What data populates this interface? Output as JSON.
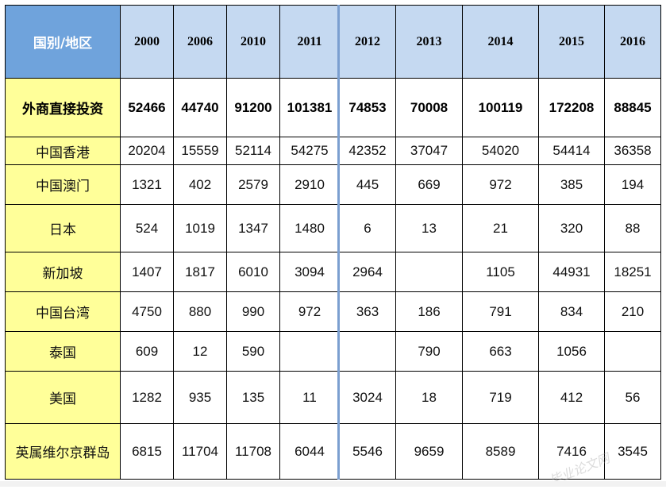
{
  "table": {
    "corner_label": "国别/地区",
    "years": [
      "2000",
      "2006",
      "2010",
      "2011",
      "2012",
      "2013",
      "2014",
      "2015",
      "2016"
    ],
    "total": {
      "label": "外商直接投资",
      "values": [
        "52466",
        "44740",
        "91200",
        "101381",
        "74853",
        "70008",
        "100119",
        "172208",
        "88845"
      ]
    },
    "rows": [
      {
        "label": "中国香港",
        "values": [
          "20204",
          "15559",
          "52114",
          "54275",
          "42352",
          "37047",
          "54020",
          "54414",
          "36358"
        ]
      },
      {
        "label": "中国澳门",
        "values": [
          "1321",
          "402",
          "2579",
          "2910",
          "445",
          "669",
          "972",
          "385",
          "194"
        ]
      },
      {
        "label": "日本",
        "values": [
          "524",
          "1019",
          "1347",
          "1480",
          "6",
          "13",
          "21",
          "320",
          "88"
        ]
      },
      {
        "label": "新加坡",
        "values": [
          "1407",
          "1817",
          "6010",
          "3094",
          "2964",
          "",
          "1105",
          "44931",
          "18251"
        ]
      },
      {
        "label": "中国台湾",
        "values": [
          "4750",
          "880",
          "990",
          "972",
          "363",
          "186",
          "791",
          "834",
          "210"
        ]
      },
      {
        "label": "泰国",
        "values": [
          "609",
          "12",
          "590",
          "",
          "",
          "790",
          "663",
          "1056",
          ""
        ]
      },
      {
        "label": "美国",
        "values": [
          "1282",
          "935",
          "135",
          "11",
          "3024",
          "18",
          "719",
          "412",
          "56"
        ]
      },
      {
        "label": "英属维尔京群岛",
        "values": [
          "6815",
          "11704",
          "11708",
          "6044",
          "5546",
          "9659",
          "8589",
          "7416",
          "3545"
        ]
      }
    ]
  },
  "watermark": "毕业论文网",
  "colors": {
    "corner_bg": "#6fa3dc",
    "year_header_bg": "#c5d9f1",
    "label_bg": "#ffff99"
  }
}
